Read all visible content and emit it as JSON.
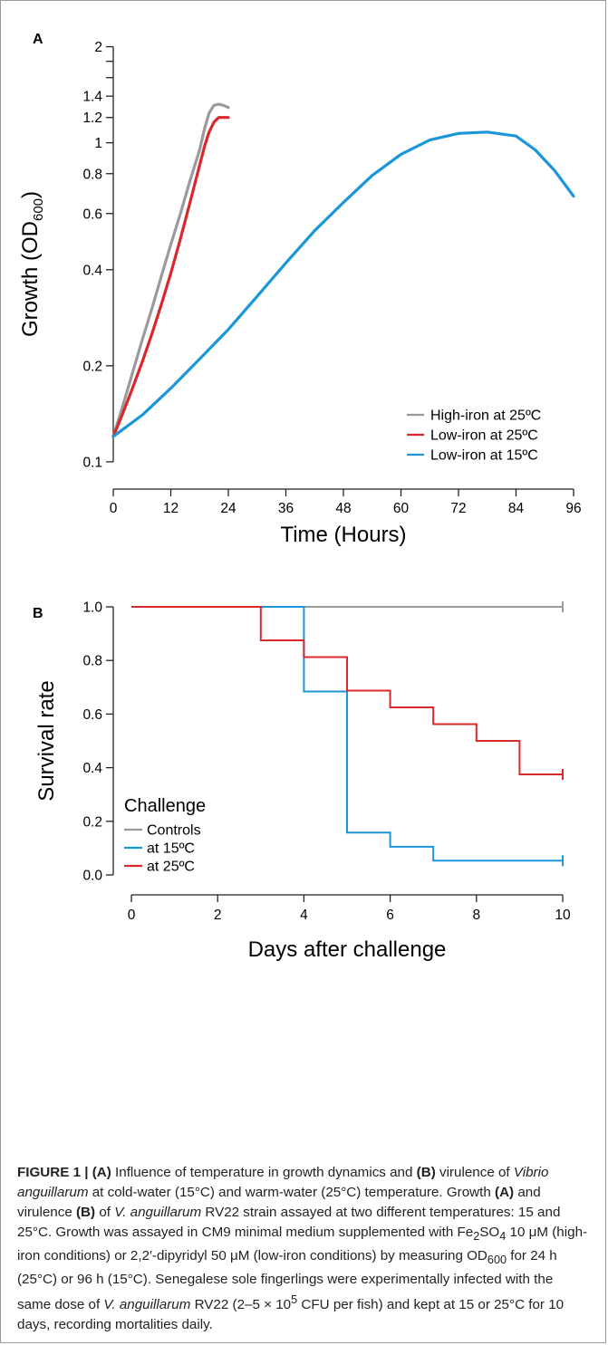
{
  "chart_data": [
    {
      "panel_label": "A",
      "type": "line",
      "xlabel": "Time (Hours)",
      "ylabel": "Growth (OD600)",
      "ylabel_main": "Growth (OD",
      "ylabel_sub": "600",
      "ylabel_close": ")",
      "yscale": "log",
      "xlim": [
        0,
        96
      ],
      "ylim": [
        0.09,
        2.2
      ],
      "xticks": [
        0,
        12,
        24,
        36,
        48,
        60,
        72,
        84,
        96
      ],
      "xtick_labels": [
        "0",
        "12",
        "24",
        "36",
        "48",
        "60",
        "72",
        "84",
        "96"
      ],
      "yticks": [
        0.1,
        0.2,
        0.4,
        0.6,
        0.8,
        1,
        1.2,
        1.4,
        2
      ],
      "ytick_labels": [
        "0.1",
        "0.2",
        "0.4",
        "0.6",
        "0.8",
        "1",
        "1.2",
        "1.4",
        "2"
      ],
      "yticks_unlabeled": [
        1.6,
        1.8
      ],
      "grid": false,
      "legend_position": "bottom-right",
      "series": [
        {
          "name": "High-iron at 25ºC",
          "color": "#9a9a9a",
          "x": [
            0,
            2,
            4,
            6,
            8,
            10,
            12,
            14,
            16,
            18,
            19,
            20,
            21,
            22,
            23,
            24
          ],
          "y": [
            0.12,
            0.15,
            0.19,
            0.24,
            0.3,
            0.38,
            0.48,
            0.6,
            0.76,
            0.95,
            1.1,
            1.24,
            1.31,
            1.32,
            1.31,
            1.29
          ]
        },
        {
          "name": "Low-iron at 25ºC",
          "color": "#d9282c",
          "x": [
            0,
            2,
            4,
            6,
            8,
            10,
            12,
            14,
            16,
            18,
            19,
            20,
            21,
            22,
            23,
            24
          ],
          "y": [
            0.12,
            0.142,
            0.17,
            0.205,
            0.25,
            0.31,
            0.39,
            0.5,
            0.65,
            0.85,
            0.97,
            1.08,
            1.16,
            1.2,
            1.2,
            1.2
          ]
        },
        {
          "name": "Low-iron at 15ºC",
          "color": "#1a96d9",
          "x": [
            0,
            6,
            12,
            18,
            24,
            30,
            36,
            42,
            48,
            54,
            60,
            66,
            72,
            78,
            84,
            88,
            92,
            96
          ],
          "y": [
            0.12,
            0.14,
            0.17,
            0.21,
            0.26,
            0.33,
            0.42,
            0.53,
            0.65,
            0.79,
            0.92,
            1.02,
            1.07,
            1.08,
            1.05,
            0.95,
            0.82,
            0.68
          ]
        }
      ]
    },
    {
      "panel_label": "B",
      "type": "line",
      "step": true,
      "xlabel": "Days after challenge",
      "ylabel": "Survival rate",
      "xlim": [
        0,
        10
      ],
      "ylim": [
        0,
        1
      ],
      "xticks": [
        0,
        2,
        4,
        6,
        8,
        10
      ],
      "xtick_labels": [
        "0",
        "2",
        "4",
        "6",
        "8",
        "10"
      ],
      "yticks": [
        0,
        0.2,
        0.4,
        0.6,
        0.8,
        1
      ],
      "ytick_labels": [
        "0.0",
        "0.2",
        "0.4",
        "0.6",
        "0.8",
        "1.0"
      ],
      "grid": false,
      "legend_title": "Challenge",
      "legend_position": "bottom-left",
      "censor_marks_at_x": 10,
      "series": [
        {
          "name": "Controls",
          "color": "#9a9a9a",
          "x": [
            0,
            10
          ],
          "y": [
            1.0,
            1.0
          ]
        },
        {
          "name": "at 15ºC",
          "color": "#1a96d9",
          "x": [
            0,
            4,
            5,
            6,
            7,
            10
          ],
          "y": [
            1.0,
            0.684,
            0.158,
            0.105,
            0.053,
            0.053
          ]
        },
        {
          "name": "at 25ºC",
          "color": "#d9282c",
          "x": [
            0,
            3,
            4,
            5,
            6,
            7,
            8,
            9,
            10
          ],
          "y": [
            1.0,
            0.875,
            0.8125,
            0.6875,
            0.625,
            0.5625,
            0.5,
            0.375,
            0.375
          ]
        }
      ]
    }
  ],
  "caption": {
    "figure_label": "FIGURE 1 | ",
    "a_ref": "(A)",
    "t1": " Influence of temperature in growth dynamics and ",
    "b_ref": "(B)",
    "t2": " virulence of ",
    "species": "Vibrio anguillarum",
    "t3": " at cold-water (15°C) and warm-water (25°C) temperature. Growth ",
    "a_ref2": "(A)",
    "t4": " and virulence ",
    "b_ref2": "(B)",
    "t5": " of ",
    "species_short": "V. anguillarum",
    "t6": " RV22 strain assayed at two different temperatures: 15 and 25°C. Growth was assayed in CM9 minimal medium supplemented with Fe",
    "sub2": "2",
    "t7": "SO",
    "sub4": "4",
    "t8": " 10 μM (high-iron conditions) or 2,2′-dipyridyl 50 μM (low-iron conditions) by measuring OD",
    "sub600": "600",
    "t9": " for 24 h (25°C) or 96 h (15°C). Senegalese sole fingerlings were experimentally infected with the same dose of ",
    "species_short2": "V. anguillarum",
    "t10": " RV22 (2–5 × 10",
    "sup5": "5",
    "t11": " CFU per fish) and kept at 15 or 25°C for 10 days, recording mortalities daily."
  }
}
